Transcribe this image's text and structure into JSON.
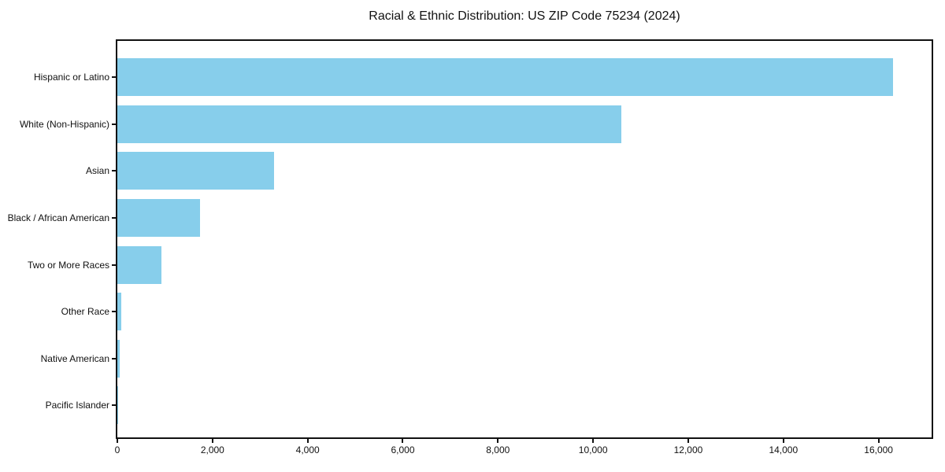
{
  "chart_data": {
    "type": "bar",
    "orientation": "horizontal",
    "title": "Racial & Ethnic Distribution: US ZIP Code 75234 (2024)",
    "categories": [
      "Hispanic or Latino",
      "White (Non-Hispanic)",
      "Asian",
      "Black / African American",
      "Two or More Races",
      "Other Race",
      "Native American",
      "Pacific Islander"
    ],
    "values": [
      16300,
      10600,
      3300,
      1730,
      925,
      85,
      45,
      10
    ],
    "xlabel": "",
    "ylabel": "",
    "xlim": [
      0,
      17115
    ],
    "x_ticks": [
      0,
      2000,
      4000,
      6000,
      8000,
      10000,
      12000,
      14000,
      16000
    ],
    "x_tick_labels": [
      "0",
      "2,000",
      "4,000",
      "6,000",
      "8,000",
      "10,000",
      "12,000",
      "14,000",
      "16,000"
    ],
    "bar_color": "#87CEEB",
    "axis_color": "#111111",
    "background_color": "#ffffff",
    "grid": false,
    "legend": false
  }
}
